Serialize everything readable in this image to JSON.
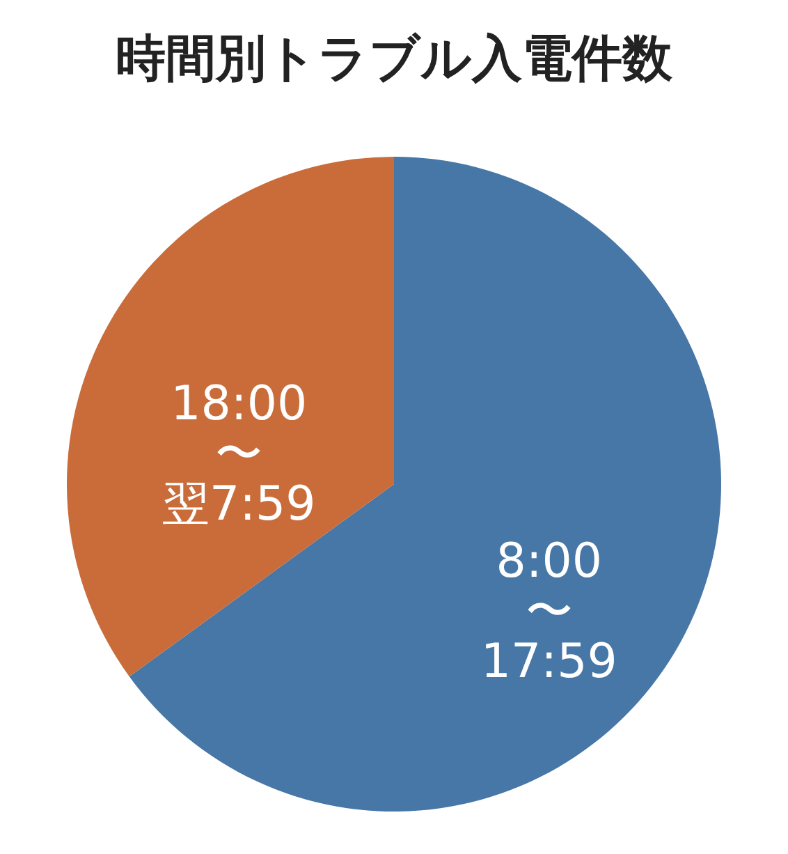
{
  "chart_data": {
    "type": "pie",
    "title": "時間別トラブル入電件数",
    "categories": [
      "8:00〜17:59",
      "18:00〜翌7:59"
    ],
    "values": [
      65,
      35
    ],
    "colors": [
      "#4677a6",
      "#c96c3a"
    ],
    "legend": false
  }
}
